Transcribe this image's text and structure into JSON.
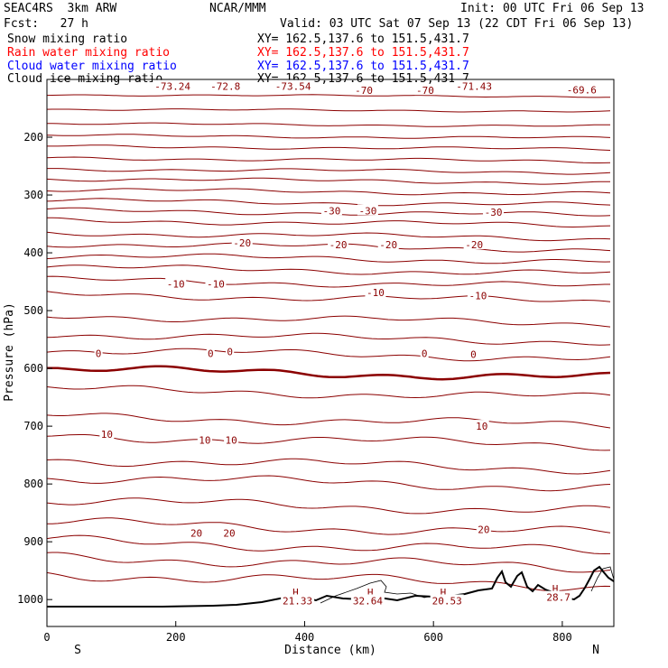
{
  "header": {
    "run": "SEAC4RS  3km ARW",
    "center": "NCAR/MMM",
    "init": "Init: 00 UTC Fri 06 Sep 13",
    "fcst": "Fcst:   27 h",
    "valid": "Valid: 03 UTC Sat 07 Sep 13 (22 CDT Fri 06 Sep 13)",
    "fields": [
      {
        "name": "Snow mixing ratio",
        "xy": "XY= 162.5,137.6 to 151.5,431.7",
        "color": "#000000"
      },
      {
        "name": "Rain water mixing ratio",
        "xy": "XY= 162.5,137.6 to 151.5,431.7",
        "color": "#ff0000"
      },
      {
        "name": "Cloud water mixing ratio",
        "xy": "XY= 162.5,137.6 to 151.5,431.7",
        "color": "#0000ff"
      },
      {
        "name": "Cloud ice mixing ratio",
        "xy": "XY= 162.5,137.6 to 151.5,431.7",
        "color": "#000000"
      }
    ]
  },
  "chart_data": {
    "type": "contour",
    "xlabel": "Distance (km)",
    "ylabel": "Pressure (hPa)",
    "xlim": [
      0,
      880
    ],
    "ylim": [
      1045,
      100
    ],
    "x_ticks": [
      0,
      200,
      400,
      600,
      800
    ],
    "y_ticks": [
      200,
      300,
      400,
      500,
      600,
      700,
      800,
      900,
      1000
    ],
    "x_end_labels": {
      "left": "S",
      "right": "N"
    },
    "contour_color": "#8b0000",
    "contour_labels": [
      {
        "text": "-73.24",
        "x": 195,
        "p": 112
      },
      {
        "text": "-72.8",
        "x": 277,
        "p": 112
      },
      {
        "text": "-73.54",
        "x": 382,
        "p": 112
      },
      {
        "text": "-71.43",
        "x": 663,
        "p": 112
      },
      {
        "text": "-69.6",
        "x": 830,
        "p": 118
      },
      {
        "text": "-70",
        "x": 492,
        "p": 119
      },
      {
        "text": "-70",
        "x": 587,
        "p": 119
      },
      {
        "text": "-30",
        "x": 442,
        "p": 327
      },
      {
        "text": "-30",
        "x": 498,
        "p": 327
      },
      {
        "text": "-30",
        "x": 693,
        "p": 330
      },
      {
        "text": "-20",
        "x": 303,
        "p": 383
      },
      {
        "text": "-20",
        "x": 452,
        "p": 386
      },
      {
        "text": "-20",
        "x": 530,
        "p": 386
      },
      {
        "text": "-20",
        "x": 663,
        "p": 386
      },
      {
        "text": "-10",
        "x": 200,
        "p": 454
      },
      {
        "text": "-10",
        "x": 262,
        "p": 454
      },
      {
        "text": "-10",
        "x": 510,
        "p": 469
      },
      {
        "text": "-10",
        "x": 669,
        "p": 474
      },
      {
        "text": "0",
        "x": 80,
        "p": 574
      },
      {
        "text": "0",
        "x": 254,
        "p": 574
      },
      {
        "text": "0",
        "x": 284,
        "p": 571
      },
      {
        "text": "0",
        "x": 586,
        "p": 574
      },
      {
        "text": "0",
        "x": 662,
        "p": 576
      },
      {
        "text": "10",
        "x": 93,
        "p": 714
      },
      {
        "text": "10",
        "x": 245,
        "p": 724
      },
      {
        "text": "10",
        "x": 286,
        "p": 724
      },
      {
        "text": "10",
        "x": 675,
        "p": 700
      },
      {
        "text": "20",
        "x": 232,
        "p": 885
      },
      {
        "text": "20",
        "x": 283,
        "p": 885
      },
      {
        "text": "20",
        "x": 678,
        "p": 879
      },
      {
        "text": "H",
        "x": 386,
        "p": 987
      },
      {
        "text": "H",
        "x": 502,
        "p": 987
      },
      {
        "text": "H",
        "x": 615,
        "p": 987
      },
      {
        "text": "H",
        "x": 789,
        "p": 981
      },
      {
        "text": "21.33",
        "x": 389,
        "p": 1002
      },
      {
        "text": "32.64",
        "x": 498,
        "p": 1002
      },
      {
        "text": "20.53",
        "x": 621,
        "p": 1002
      },
      {
        "text": "28.7",
        "x": 794,
        "p": 996
      }
    ]
  }
}
